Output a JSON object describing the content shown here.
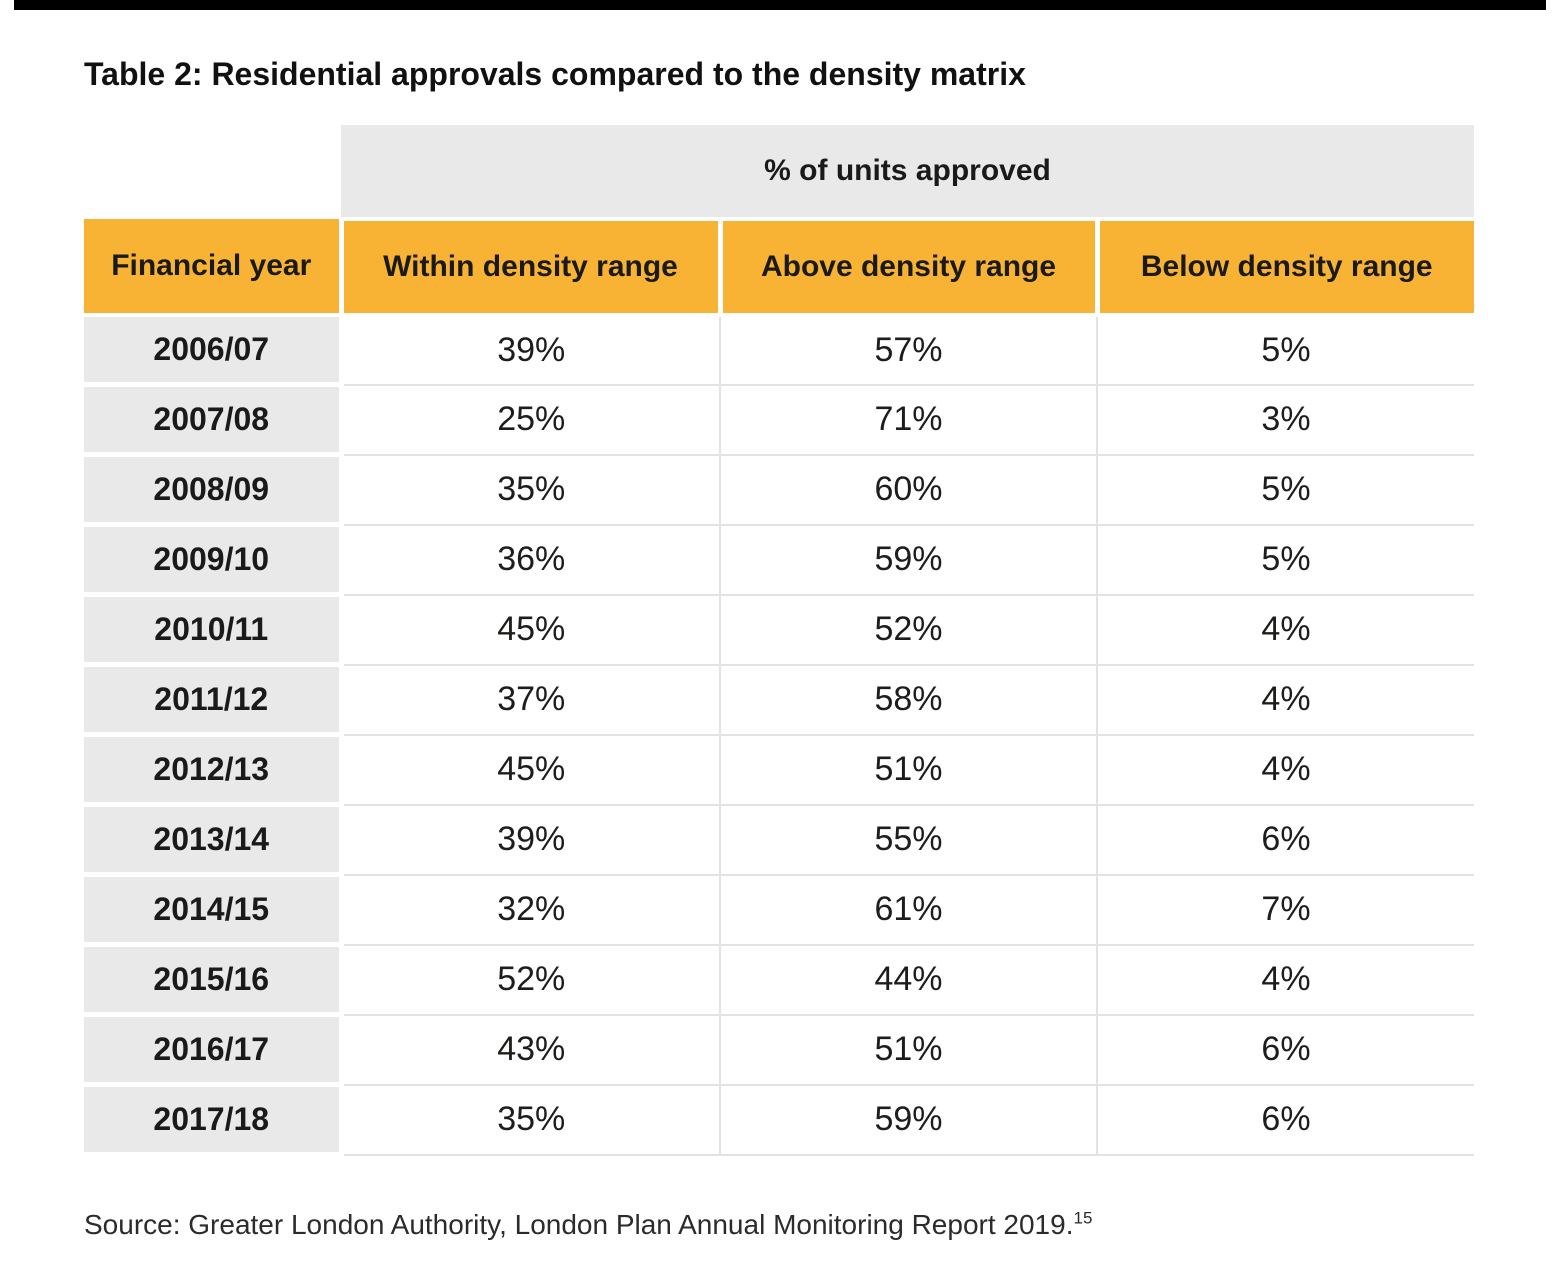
{
  "page": {
    "title": "Table 2: Residential approvals compared to the density matrix"
  },
  "table": {
    "group_header": "% of units approved",
    "columns": [
      "Financial year",
      "Within density range",
      "Above density range",
      "Below density range"
    ],
    "rows": [
      {
        "year": "2006/07",
        "within": "39%",
        "above": "57%",
        "below": "5%"
      },
      {
        "year": "2007/08",
        "within": "25%",
        "above": "71%",
        "below": "3%"
      },
      {
        "year": "2008/09",
        "within": "35%",
        "above": "60%",
        "below": "5%"
      },
      {
        "year": "2009/10",
        "within": "36%",
        "above": "59%",
        "below": "5%"
      },
      {
        "year": "2010/11",
        "within": "45%",
        "above": "52%",
        "below": "4%"
      },
      {
        "year": "2011/12",
        "within": "37%",
        "above": "58%",
        "below": "4%"
      },
      {
        "year": "2012/13",
        "within": "45%",
        "above": "51%",
        "below": "4%"
      },
      {
        "year": "2013/14",
        "within": "39%",
        "above": "55%",
        "below": "6%"
      },
      {
        "year": "2014/15",
        "within": "32%",
        "above": "61%",
        "below": "7%"
      },
      {
        "year": "2015/16",
        "within": "52%",
        "above": "44%",
        "below": "4%"
      },
      {
        "year": "2016/17",
        "within": "43%",
        "above": "51%",
        "below": "6%"
      },
      {
        "year": "2017/18",
        "within": "35%",
        "above": "59%",
        "below": "6%"
      }
    ]
  },
  "source": {
    "text": "Source: Greater London Authority, London Plan Annual Monitoring Report 2019.",
    "footnote_marker": "15"
  },
  "colors": {
    "accent_yellow": "#f8b334",
    "band_gray": "#e9e9e9",
    "cell_border_gray": "#e3e3e3",
    "text_black": "#1a1a1a",
    "top_rule_black": "#000000"
  },
  "chart_data": {
    "type": "table",
    "title": "Table 2: Residential approvals compared to the density matrix",
    "group_header": "% of units approved",
    "columns": [
      "Financial year",
      "Within density range",
      "Above density range",
      "Below density range"
    ],
    "rows": [
      [
        "2006/07",
        "39%",
        "57%",
        "5%"
      ],
      [
        "2007/08",
        "25%",
        "71%",
        "3%"
      ],
      [
        "2008/09",
        "35%",
        "60%",
        "5%"
      ],
      [
        "2009/10",
        "36%",
        "59%",
        "5%"
      ],
      [
        "2010/11",
        "45%",
        "52%",
        "4%"
      ],
      [
        "2011/12",
        "37%",
        "58%",
        "4%"
      ],
      [
        "2012/13",
        "45%",
        "51%",
        "4%"
      ],
      [
        "2013/14",
        "39%",
        "55%",
        "6%"
      ],
      [
        "2014/15",
        "32%",
        "61%",
        "7%"
      ],
      [
        "2015/16",
        "52%",
        "44%",
        "4%"
      ],
      [
        "2016/17",
        "43%",
        "51%",
        "6%"
      ],
      [
        "2017/18",
        "35%",
        "59%",
        "6%"
      ]
    ],
    "source": "Source: Greater London Authority, London Plan Annual Monitoring Report 2019.15"
  }
}
